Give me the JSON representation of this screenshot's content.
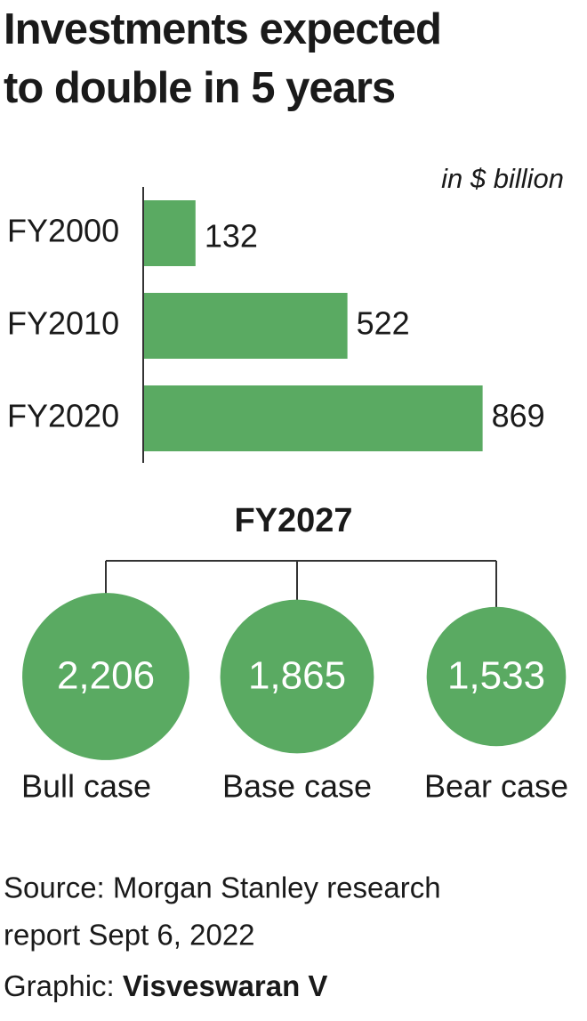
{
  "title_lines": [
    "Investments expected",
    "to double in 5 years"
  ],
  "chart_data": [
    {
      "type": "bar",
      "orientation": "horizontal",
      "unit_label": "in $ billion",
      "categories": [
        "FY2000",
        "FY2010",
        "FY2020"
      ],
      "values": [
        132,
        522,
        869
      ],
      "color": "#5aaa62"
    },
    {
      "type": "bubble",
      "title": "FY2027",
      "categories": [
        "Bull case",
        "Base case",
        "Bear case"
      ],
      "values": [
        2206,
        1865,
        1533
      ],
      "value_labels": [
        "2,206",
        "1,865",
        "1,533"
      ],
      "color": "#5aaa62"
    }
  ],
  "source_lines": [
    "Source: Morgan Stanley research",
    "report Sept 6, 2022"
  ],
  "credit_label": "Graphic:",
  "credit_name": "Visveswaran V"
}
